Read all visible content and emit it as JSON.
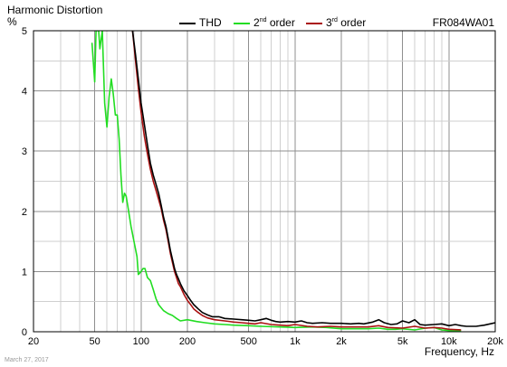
{
  "chart_data": {
    "type": "line",
    "title": "Harmonic Distortion",
    "ylabel": "%",
    "xlabel": "Frequency, Hz",
    "model": "FR084WA01",
    "date": "March 27, 2017",
    "x_scale": "log",
    "xlim": [
      20,
      20000
    ],
    "ylim": [
      0,
      5
    ],
    "grid": true,
    "legend_position": "top-center",
    "x_ticks": [
      {
        "value": 20,
        "label": "20"
      },
      {
        "value": 50,
        "label": "50"
      },
      {
        "value": 100,
        "label": "100"
      },
      {
        "value": 200,
        "label": "200"
      },
      {
        "value": 500,
        "label": "500"
      },
      {
        "value": 1000,
        "label": "1k"
      },
      {
        "value": 2000,
        "label": "2k"
      },
      {
        "value": 5000,
        "label": "5k"
      },
      {
        "value": 10000,
        "label": "10k"
      },
      {
        "value": 20000,
        "label": "20k"
      }
    ],
    "y_ticks": [
      0,
      1,
      2,
      3,
      4,
      5
    ],
    "series": [
      {
        "name": "THD",
        "color": "#000000",
        "points": [
          [
            88,
            5.0
          ],
          [
            92,
            4.6
          ],
          [
            96,
            4.2
          ],
          [
            100,
            3.8
          ],
          [
            105,
            3.45
          ],
          [
            110,
            3.1
          ],
          [
            115,
            2.8
          ],
          [
            120,
            2.6
          ],
          [
            125,
            2.45
          ],
          [
            130,
            2.3
          ],
          [
            135,
            2.1
          ],
          [
            140,
            1.9
          ],
          [
            145,
            1.75
          ],
          [
            150,
            1.55
          ],
          [
            155,
            1.35
          ],
          [
            160,
            1.2
          ],
          [
            165,
            1.05
          ],
          [
            170,
            0.95
          ],
          [
            175,
            0.88
          ],
          [
            180,
            0.8
          ],
          [
            190,
            0.68
          ],
          [
            200,
            0.6
          ],
          [
            210,
            0.52
          ],
          [
            220,
            0.45
          ],
          [
            235,
            0.38
          ],
          [
            250,
            0.32
          ],
          [
            270,
            0.28
          ],
          [
            290,
            0.25
          ],
          [
            320,
            0.25
          ],
          [
            350,
            0.22
          ],
          [
            400,
            0.21
          ],
          [
            450,
            0.2
          ],
          [
            500,
            0.19
          ],
          [
            550,
            0.18
          ],
          [
            600,
            0.2
          ],
          [
            650,
            0.22
          ],
          [
            700,
            0.19
          ],
          [
            750,
            0.17
          ],
          [
            800,
            0.16
          ],
          [
            900,
            0.17
          ],
          [
            1000,
            0.16
          ],
          [
            1100,
            0.18
          ],
          [
            1200,
            0.15
          ],
          [
            1300,
            0.14
          ],
          [
            1500,
            0.15
          ],
          [
            1700,
            0.14
          ],
          [
            2000,
            0.14
          ],
          [
            2300,
            0.13
          ],
          [
            2600,
            0.14
          ],
          [
            2800,
            0.13
          ],
          [
            3200,
            0.16
          ],
          [
            3500,
            0.2
          ],
          [
            3800,
            0.15
          ],
          [
            4200,
            0.12
          ],
          [
            4600,
            0.13
          ],
          [
            5000,
            0.18
          ],
          [
            5500,
            0.15
          ],
          [
            6000,
            0.2
          ],
          [
            6500,
            0.12
          ],
          [
            7000,
            0.11
          ],
          [
            8000,
            0.12
          ],
          [
            9000,
            0.13
          ],
          [
            10000,
            0.1
          ],
          [
            11000,
            0.12
          ],
          [
            12000,
            0.1
          ],
          [
            13000,
            0.09
          ],
          [
            15000,
            0.09
          ],
          [
            17000,
            0.11
          ],
          [
            20000,
            0.15
          ]
        ]
      },
      {
        "name": "2nd order",
        "color": "#22dd22",
        "points": [
          [
            48,
            4.8
          ],
          [
            50,
            4.15
          ],
          [
            51,
            5.0
          ],
          [
            53,
            5.0
          ],
          [
            54,
            4.7
          ],
          [
            56,
            5.0
          ],
          [
            58,
            3.8
          ],
          [
            60,
            3.4
          ],
          [
            62,
            3.9
          ],
          [
            64,
            4.2
          ],
          [
            66,
            3.95
          ],
          [
            68,
            3.6
          ],
          [
            70,
            3.6
          ],
          [
            72,
            3.2
          ],
          [
            74,
            2.6
          ],
          [
            76,
            2.15
          ],
          [
            78,
            2.3
          ],
          [
            80,
            2.25
          ],
          [
            83,
            2.0
          ],
          [
            86,
            1.75
          ],
          [
            90,
            1.5
          ],
          [
            94,
            1.25
          ],
          [
            96,
            0.95
          ],
          [
            100,
            1.0
          ],
          [
            103,
            1.05
          ],
          [
            106,
            1.05
          ],
          [
            110,
            0.9
          ],
          [
            115,
            0.85
          ],
          [
            120,
            0.7
          ],
          [
            125,
            0.55
          ],
          [
            130,
            0.45
          ],
          [
            140,
            0.35
          ],
          [
            150,
            0.3
          ],
          [
            160,
            0.27
          ],
          [
            170,
            0.22
          ],
          [
            180,
            0.18
          ],
          [
            200,
            0.2
          ],
          [
            230,
            0.17
          ],
          [
            260,
            0.15
          ],
          [
            300,
            0.13
          ],
          [
            350,
            0.12
          ],
          [
            400,
            0.11
          ],
          [
            500,
            0.1
          ],
          [
            600,
            0.09
          ],
          [
            800,
            0.08
          ],
          [
            1000,
            0.07
          ],
          [
            1300,
            0.08
          ],
          [
            1600,
            0.07
          ],
          [
            2000,
            0.05
          ],
          [
            2500,
            0.05
          ],
          [
            3000,
            0.05
          ],
          [
            3500,
            0.06
          ],
          [
            4000,
            0.04
          ],
          [
            4500,
            0.04
          ],
          [
            5000,
            0.05
          ],
          [
            6000,
            0.03
          ],
          [
            7000,
            0.06
          ],
          [
            8000,
            0.07
          ],
          [
            9000,
            0.03
          ],
          [
            10000,
            0.02
          ],
          [
            12000,
            0.01
          ]
        ]
      },
      {
        "name": "3rd order",
        "color": "#aa1111",
        "points": [
          [
            88,
            5.0
          ],
          [
            92,
            4.5
          ],
          [
            96,
            4.05
          ],
          [
            100,
            3.65
          ],
          [
            105,
            3.25
          ],
          [
            110,
            2.95
          ],
          [
            115,
            2.7
          ],
          [
            120,
            2.5
          ],
          [
            125,
            2.35
          ],
          [
            130,
            2.2
          ],
          [
            135,
            2.05
          ],
          [
            140,
            1.85
          ],
          [
            145,
            1.7
          ],
          [
            150,
            1.5
          ],
          [
            155,
            1.3
          ],
          [
            160,
            1.15
          ],
          [
            165,
            1.0
          ],
          [
            170,
            0.9
          ],
          [
            175,
            0.8
          ],
          [
            180,
            0.75
          ],
          [
            190,
            0.62
          ],
          [
            200,
            0.52
          ],
          [
            210,
            0.45
          ],
          [
            220,
            0.38
          ],
          [
            235,
            0.32
          ],
          [
            250,
            0.27
          ],
          [
            270,
            0.23
          ],
          [
            300,
            0.2
          ],
          [
            350,
            0.18
          ],
          [
            400,
            0.16
          ],
          [
            450,
            0.15
          ],
          [
            500,
            0.14
          ],
          [
            550,
            0.13
          ],
          [
            600,
            0.15
          ],
          [
            700,
            0.12
          ],
          [
            800,
            0.11
          ],
          [
            900,
            0.1
          ],
          [
            1000,
            0.12
          ],
          [
            1200,
            0.09
          ],
          [
            1400,
            0.08
          ],
          [
            1700,
            0.09
          ],
          [
            2000,
            0.08
          ],
          [
            2500,
            0.08
          ],
          [
            3000,
            0.08
          ],
          [
            3500,
            0.1
          ],
          [
            4000,
            0.07
          ],
          [
            5000,
            0.06
          ],
          [
            6000,
            0.09
          ],
          [
            7000,
            0.06
          ],
          [
            8000,
            0.07
          ],
          [
            9000,
            0.06
          ],
          [
            10000,
            0.04
          ],
          [
            12000,
            0.03
          ]
        ]
      }
    ]
  }
}
